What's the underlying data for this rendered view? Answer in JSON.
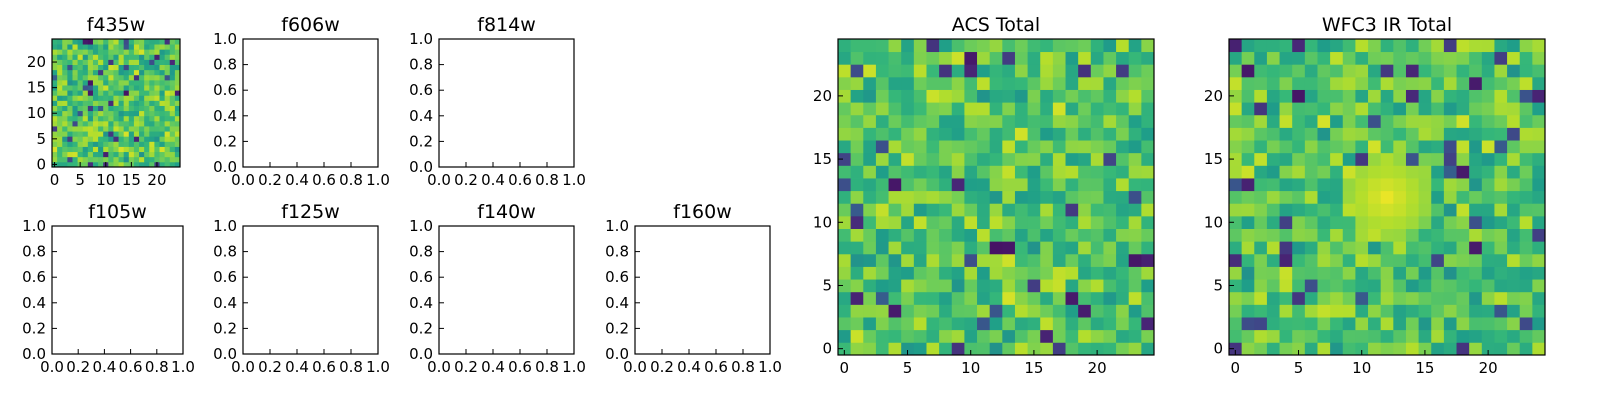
{
  "chart_data": [
    {
      "type": "heatmap",
      "title": "f435w",
      "kind": "image",
      "grid_size": 25,
      "xticks": [
        0,
        5,
        10,
        15,
        20
      ],
      "yticks": [
        0,
        5,
        10,
        15,
        20
      ],
      "seed": 11,
      "hot_spot": null
    },
    {
      "type": "heatmap",
      "title": "f606w",
      "kind": "empty",
      "xticks": [
        "0.0",
        "0.2",
        "0.4",
        "0.6",
        "0.8",
        "1.0"
      ],
      "yticks": [
        "0.0",
        "0.2",
        "0.4",
        "0.6",
        "0.8",
        "1.0"
      ]
    },
    {
      "type": "heatmap",
      "title": "f814w",
      "kind": "empty",
      "xticks": [
        "0.0",
        "0.2",
        "0.4",
        "0.6",
        "0.8",
        "1.0"
      ],
      "yticks": [
        "0.0",
        "0.2",
        "0.4",
        "0.6",
        "0.8",
        "1.0"
      ]
    },
    {
      "type": "heatmap",
      "title": "f105w",
      "kind": "empty",
      "xticks": [
        "0.0",
        "0.2",
        "0.4",
        "0.6",
        "0.8",
        "1.0"
      ],
      "yticks": [
        "0.0",
        "0.2",
        "0.4",
        "0.6",
        "0.8",
        "1.0"
      ]
    },
    {
      "type": "heatmap",
      "title": "f125w",
      "kind": "empty",
      "xticks": [
        "0.0",
        "0.2",
        "0.4",
        "0.6",
        "0.8",
        "1.0"
      ],
      "yticks": [
        "0.0",
        "0.2",
        "0.4",
        "0.6",
        "0.8",
        "1.0"
      ]
    },
    {
      "type": "heatmap",
      "title": "f140w",
      "kind": "empty",
      "xticks": [
        "0.0",
        "0.2",
        "0.4",
        "0.6",
        "0.8",
        "1.0"
      ],
      "yticks": [
        "0.0",
        "0.2",
        "0.4",
        "0.6",
        "0.8",
        "1.0"
      ]
    },
    {
      "type": "heatmap",
      "title": "f160w",
      "kind": "empty",
      "xticks": [
        "0.0",
        "0.2",
        "0.4",
        "0.6",
        "0.8",
        "1.0"
      ],
      "yticks": [
        "0.0",
        "0.2",
        "0.4",
        "0.6",
        "0.8",
        "1.0"
      ]
    },
    {
      "type": "heatmap",
      "title": "ACS Total",
      "kind": "image",
      "grid_size": 25,
      "xticks": [
        0,
        5,
        10,
        15,
        20
      ],
      "yticks": [
        0,
        5,
        10,
        15,
        20
      ],
      "seed": 29,
      "hot_spot": null
    },
    {
      "type": "heatmap",
      "title": "WFC3 IR Total",
      "kind": "image",
      "grid_size": 25,
      "xticks": [
        0,
        5,
        10,
        15,
        20
      ],
      "yticks": [
        0,
        5,
        10,
        15,
        20
      ],
      "seed": 47,
      "hot_spot": {
        "x": 12,
        "y": 12
      }
    }
  ],
  "colormap": "viridis"
}
